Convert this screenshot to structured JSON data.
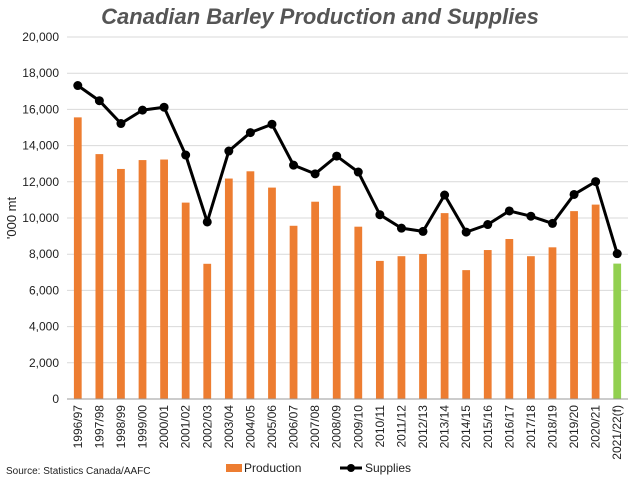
{
  "chart_data": {
    "type": "bar",
    "title": "Canadian Barley Production and Supplies",
    "ylabel": "'000 mt",
    "xlabel": "",
    "ylim": [
      0,
      20000
    ],
    "y_ticks": [
      "0",
      "2,000",
      "4,000",
      "6,000",
      "8,000",
      "10,000",
      "12,000",
      "14,000",
      "16,000",
      "18,000",
      "20,000"
    ],
    "grid": "horizontal",
    "legend_position": "bottom",
    "source": "Source: Statistics Canada/AAFC",
    "categories": [
      "1996/97",
      "1997/98",
      "1998/99",
      "1999/00",
      "2000/01",
      "2001/02",
      "2002/03",
      "2003/04",
      "2004/05",
      "2005/06",
      "2006/07",
      "2007/08",
      "2008/09",
      "2009/10",
      "2010/11",
      "2011/12",
      "2012/13",
      "2013/14",
      "2014/15",
      "2015/16",
      "2016/17",
      "2017/18",
      "2018/19",
      "2019/20",
      "2020/21",
      "2021/22(f)"
    ],
    "series": [
      {
        "name": "Production",
        "type": "bar",
        "color": "#ED7D31",
        "highlight_color": "#92D050",
        "highlight_index": 25,
        "values": [
          15560,
          13530,
          12710,
          13200,
          13230,
          10850,
          7470,
          12180,
          12580,
          11680,
          9570,
          10900,
          11780,
          9520,
          7630,
          7890,
          8010,
          10270,
          7120,
          8230,
          8840,
          7890,
          8380,
          10380,
          10740,
          7480
        ]
      },
      {
        "name": "Supplies",
        "type": "line",
        "color": "#000000",
        "values": [
          17320,
          16480,
          15220,
          15960,
          16120,
          13480,
          9780,
          13700,
          14720,
          15180,
          12920,
          12440,
          13420,
          12540,
          10180,
          9440,
          9260,
          11270,
          9220,
          9640,
          10390,
          10100,
          9700,
          11300,
          12010,
          8030
        ]
      }
    ]
  }
}
